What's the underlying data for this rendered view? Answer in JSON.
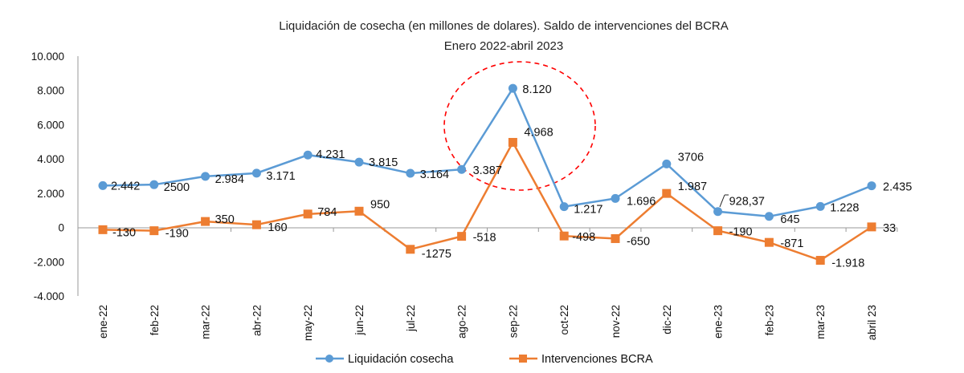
{
  "chart_data": {
    "type": "line",
    "title": "Liquidación de cosecha  (en millones de dolares). Saldo de intervenciones del BCRA",
    "subtitle": "Enero 2022-abril 2023",
    "xlabel": "",
    "ylabel": "",
    "ylim": [
      -4000,
      10000
    ],
    "yticks": [
      10000,
      8000,
      6000,
      4000,
      2000,
      0,
      -2000,
      -4000
    ],
    "ytick_labels": [
      "10.000",
      "8.000",
      "6.000",
      "4.000",
      "2.000",
      "0",
      "-2.000",
      "-4.000"
    ],
    "grid": false,
    "legend_position": "bottom",
    "categories": [
      "ene-22",
      "feb-22",
      "mar-22",
      "abr-22",
      "may-22",
      "jun-22",
      "jul-22",
      "ago-22",
      "sep-22",
      "oct-22",
      "nov-22",
      "dic-22",
      "ene-23",
      "feb-23",
      "mar-23",
      "abril 23"
    ],
    "series": [
      {
        "name": "Liquidación cosecha",
        "color": "#5B9BD5",
        "marker": "circle",
        "values": [
          2442,
          2500,
          2984,
          3171,
          4231,
          3815,
          3164,
          3387,
          8120,
          1217,
          1696,
          3706,
          928.37,
          645,
          1228,
          2435
        ],
        "labels": [
          "2.442",
          "2500",
          "2.984",
          "3.171",
          "4.231",
          "3.815",
          "3.164",
          "3.387",
          "8.120",
          "1.217",
          "1.696",
          "3706",
          "928,37",
          "645",
          "1.228",
          "2.435"
        ]
      },
      {
        "name": "Intervenciones BCRA",
        "color": "#ED7D31",
        "marker": "square",
        "values": [
          -130,
          -190,
          350,
          160,
          784,
          950,
          -1275,
          -518,
          4968,
          -498,
          -650,
          1987,
          -190,
          -871,
          -1918,
          33
        ],
        "labels": [
          "-130",
          "-190",
          "350",
          "160",
          "784",
          "950",
          "-1275",
          "-518",
          "4.968",
          "-498",
          "-650",
          "1.987",
          "-190",
          "-871",
          "-1.918",
          "33"
        ]
      }
    ],
    "annotations": [
      {
        "type": "dashed-ellipse",
        "color": "#FF0000",
        "around_category": "sep-22"
      }
    ]
  }
}
